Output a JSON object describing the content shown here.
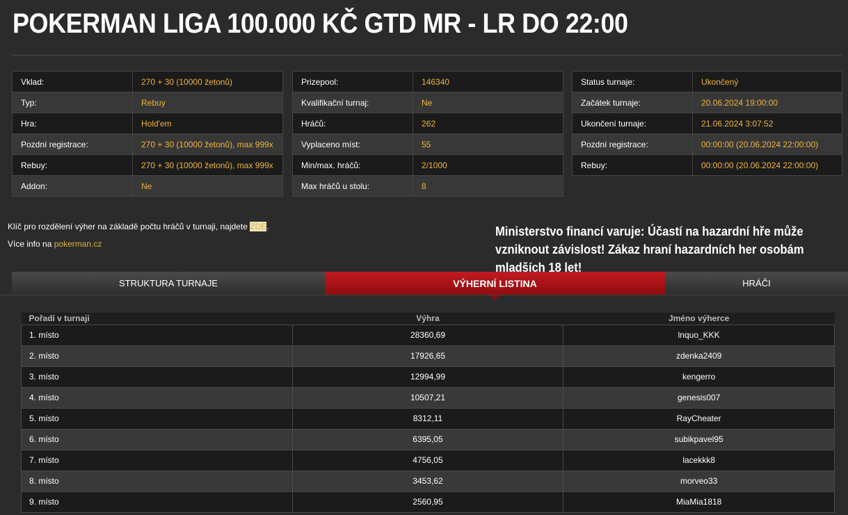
{
  "title": "POKERMAN LIGA 100.000 KČ GTD MR - LR DO 22:00",
  "info1": [
    [
      "Vklad:",
      "270 + 30 (10000 žetonů)"
    ],
    [
      "Typ:",
      "Rebuy"
    ],
    [
      "Hra:",
      "Hold'em"
    ],
    [
      "Pozdní registrace:",
      "270 + 30 (10000 žetonů), max 999x"
    ],
    [
      "Rebuy:",
      "270 + 30 (10000 žetonů), max 999x"
    ],
    [
      "Addon:",
      "Ne"
    ]
  ],
  "info2": [
    [
      "Prizepool:",
      "146340"
    ],
    [
      "Kvalifikační turnaj:",
      "Ne"
    ],
    [
      "Hráčů:",
      "262"
    ],
    [
      "Vyplaceno míst:",
      "55"
    ],
    [
      "Min/max. hráčů:",
      "2/1000"
    ],
    [
      "Max hráčů u stolu:",
      "8"
    ]
  ],
  "info3": [
    [
      "Status turnaje:",
      "Ukončený"
    ],
    [
      "Začátek turnaje:",
      "20.06.2024 19:00:00"
    ],
    [
      "Ukončení turnaje:",
      "21.06.2024 3:07:52"
    ],
    [
      "Pozdní registrace:",
      "00:00:00 (20.06.2024 22:00:00)"
    ],
    [
      "Rebuy:",
      "00:00:00 (20.06.2024 22:00:00)"
    ]
  ],
  "note1": "Klíč pro rozdělení výher na základě počtu hráčů v turnaji, najdete ",
  "note1_link": "ZDE",
  "note1_end": ".",
  "note2": "Více info na ",
  "note2_link": "pokerman.cz",
  "warning": "Ministerstvo financí varuje: Účastí na hazardní hře může vzniknout závislost! Zákaz hraní hazardních her osobám mladších 18 let!",
  "tabs": [
    "STRUKTURA TURNAJE",
    "VÝHERNÍ LISTINA",
    "HRÁČI"
  ],
  "active_tab": 1,
  "results": {
    "headers": [
      "Pořadí v turnaji",
      "Výhra",
      "Jméno výherce"
    ],
    "rows": [
      [
        "1. místo",
        "28360,69",
        "lnquo_KKK"
      ],
      [
        "2. místo",
        "17926,65",
        "zdenka2409"
      ],
      [
        "3. místo",
        "12994,99",
        "kengerro"
      ],
      [
        "4. místo",
        "10507,21",
        "genesis007"
      ],
      [
        "5. místo",
        "8312,11",
        "RayCheater"
      ],
      [
        "6. místo",
        "6395,05",
        "subikpavel95"
      ],
      [
        "7. místo",
        "4756,05",
        "lacekkk8"
      ],
      [
        "8. místo",
        "3453,62",
        "morveo33"
      ],
      [
        "9. místo",
        "2560,95",
        "MiaMia1818"
      ]
    ]
  },
  "colors": {
    "accent": "#f0b43c",
    "active_tab": "#c21a1f",
    "background": "#2b2b2b"
  }
}
